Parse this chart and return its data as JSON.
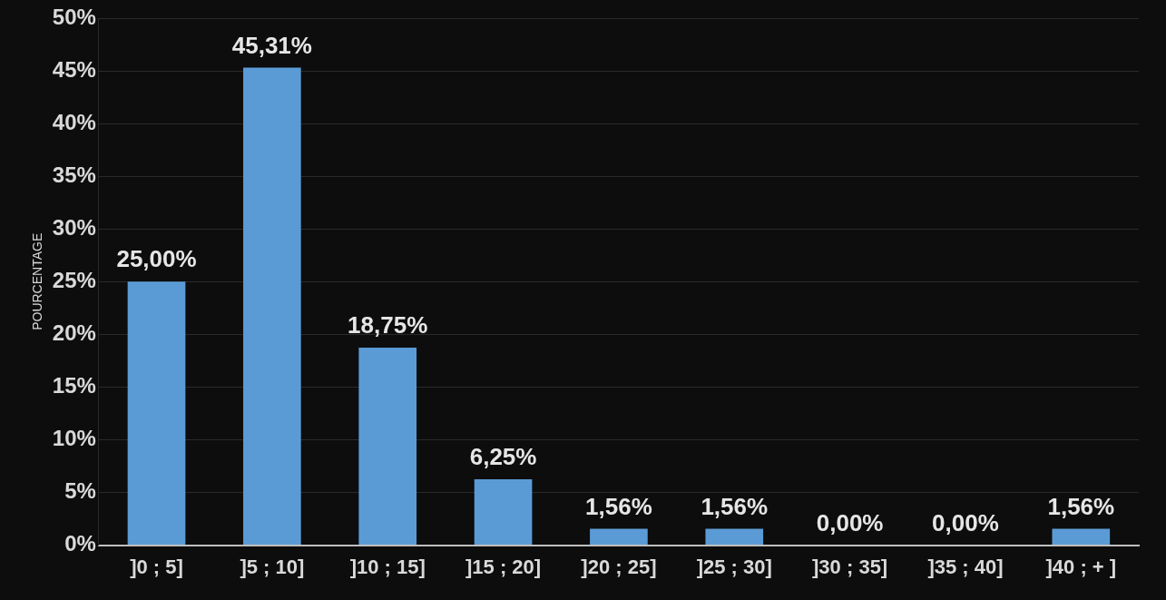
{
  "chart_data": {
    "type": "bar",
    "ylabel": "POURCENTAGE",
    "categories": [
      "]0 ; 5]",
      "]5 ; 10]",
      "]10 ; 15]",
      "]15 ; 20]",
      "]20 ; 25]",
      "]25 ; 30]",
      "]30 ; 35]",
      "]35 ; 40]",
      "]40 ; + ]"
    ],
    "values": [
      25,
      45.31,
      18.75,
      6.25,
      1.56,
      1.56,
      0,
      0,
      1.56
    ],
    "value_labels": [
      "25,00%",
      "45,31%",
      "18,75%",
      "6,25%",
      "1,56%",
      "1,56%",
      "0,00%",
      "0,00%",
      "1,56%"
    ],
    "color": "#5b9bd5",
    "ylim": [
      0,
      50
    ],
    "yticks": [
      {
        "value": 0,
        "label": "0%"
      },
      {
        "value": 5,
        "label": "5%"
      },
      {
        "value": 10,
        "label": "10%"
      },
      {
        "value": 15,
        "label": "15%"
      },
      {
        "value": 20,
        "label": "20%"
      },
      {
        "value": 25,
        "label": "25%"
      },
      {
        "value": 30,
        "label": "30%"
      },
      {
        "value": 35,
        "label": "35%"
      },
      {
        "value": 40,
        "label": "40%"
      },
      {
        "value": 45,
        "label": "45%"
      },
      {
        "value": 50,
        "label": "50%"
      }
    ],
    "grid": "y"
  }
}
